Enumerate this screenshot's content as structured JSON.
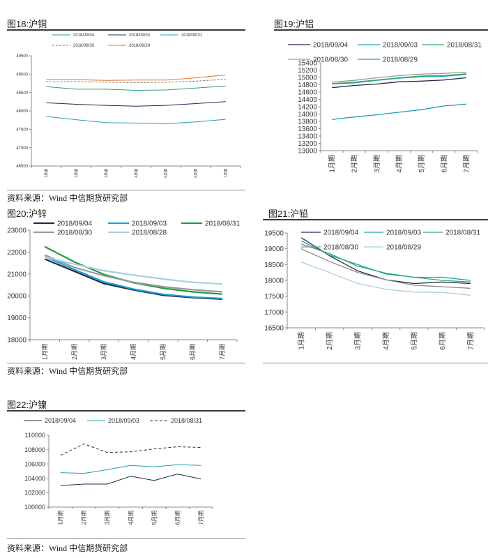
{
  "source_note": "资料来源：Wind 中信期货研究部",
  "chart_data": [
    {
      "id": "copper",
      "type": "line",
      "title": "图18:沪铜",
      "categories": [
        "1月期",
        "2月期",
        "3月期",
        "4月期",
        "5月期",
        "6月期",
        "7月期"
      ],
      "ylim": [
        46500,
        49500
      ],
      "yticks": [
        46500,
        47000,
        47500,
        48000,
        48500,
        49000,
        49500
      ],
      "grid": false,
      "legend_position": "top",
      "series": [
        {
          "name": "2018/09/04",
          "color": "#2f9e6e",
          "dash": "",
          "width": 1,
          "values": [
            48660,
            48590,
            48590,
            48560,
            48570,
            48620,
            48680
          ]
        },
        {
          "name": "2018/09/03",
          "color": "#1f2b4d",
          "dash": "",
          "width": 1,
          "values": [
            48220,
            48180,
            48150,
            48130,
            48150,
            48200,
            48250
          ]
        },
        {
          "name": "2018/08/31",
          "color": "#1ea0b4",
          "dash": "",
          "width": 1,
          "values": [
            47850,
            47760,
            47680,
            47670,
            47650,
            47700,
            47770
          ]
        },
        {
          "name": "2018/08/30",
          "color": "#777777",
          "dash": "3,2",
          "width": 1,
          "values": [
            48790,
            48800,
            48780,
            48770,
            48780,
            48810,
            48860
          ]
        },
        {
          "name": "2018/08/29",
          "color": "#e8752a",
          "dash": "",
          "width": 1,
          "values": [
            48860,
            48850,
            48830,
            48840,
            48840,
            48900,
            48980
          ]
        }
      ]
    },
    {
      "id": "aluminum",
      "type": "line",
      "title": "图19:沪铝",
      "categories": [
        "1月期",
        "2月期",
        "3月期",
        "4月期",
        "5月期",
        "6月期",
        "7月期"
      ],
      "ylim": [
        13000,
        15400
      ],
      "yticks": [
        13000,
        13200,
        13400,
        13600,
        13800,
        14000,
        14200,
        14400,
        14600,
        14800,
        15000,
        15200,
        15400
      ],
      "grid": false,
      "legend_position": "top",
      "series": [
        {
          "name": "2018/09/04",
          "color": "#1f2b4d",
          "dash": "",
          "width": 1.3,
          "values": [
            14720,
            14780,
            14820,
            14880,
            14900,
            14930,
            14990
          ]
        },
        {
          "name": "2018/09/03",
          "color": "#1ea0b4",
          "dash": "",
          "width": 1.3,
          "values": [
            14820,
            14850,
            14920,
            14980,
            15020,
            15030,
            15080
          ]
        },
        {
          "name": "2018/08/31",
          "color": "#2fae5e",
          "dash": "",
          "width": 1.3,
          "values": [
            14830,
            14870,
            14930,
            14990,
            15040,
            15050,
            15100
          ]
        },
        {
          "name": "2018/08/30",
          "color": "#999999",
          "dash": "",
          "width": 1.3,
          "values": [
            14870,
            14920,
            14990,
            15050,
            15090,
            15110,
            15140
          ]
        },
        {
          "name": "2018/08/29",
          "color": "#1ea0b4",
          "dash": "",
          "width": 1.3,
          "values": [
            13850,
            13920,
            13980,
            14050,
            14120,
            14220,
            14270
          ]
        }
      ]
    },
    {
      "id": "zinc",
      "type": "line",
      "title": "图20:沪锌",
      "categories": [
        "1月期",
        "2月期",
        "3月期",
        "4月期",
        "5月期",
        "6月期",
        "7月期"
      ],
      "ylim": [
        18000,
        23000
      ],
      "yticks": [
        18000,
        19000,
        20000,
        21000,
        22000,
        23000
      ],
      "grid": false,
      "legend_position": "top",
      "series": [
        {
          "name": "2018/09/04",
          "color": "#1f2b4d",
          "dash": "",
          "width": 2.2,
          "values": [
            21680,
            21120,
            20560,
            20270,
            20030,
            19920,
            19850
          ]
        },
        {
          "name": "2018/09/03",
          "color": "#1aa0d8",
          "dash": "",
          "width": 2.2,
          "values": [
            21800,
            21200,
            20640,
            20310,
            20070,
            19950,
            19880
          ]
        },
        {
          "name": "2018/08/31",
          "color": "#1e9e46",
          "dash": "",
          "width": 2.2,
          "values": [
            22250,
            21550,
            20980,
            20600,
            20350,
            20180,
            20080
          ]
        },
        {
          "name": "2018/08/30",
          "color": "#9a9a9a",
          "dash": "",
          "width": 2.2,
          "values": [
            21870,
            21300,
            20920,
            20620,
            20420,
            20280,
            20180
          ]
        },
        {
          "name": "2018/08/28",
          "color": "#a8cfe0",
          "dash": "",
          "width": 2.2,
          "values": [
            21780,
            21450,
            21150,
            20950,
            20770,
            20620,
            20540
          ]
        }
      ]
    },
    {
      "id": "lead",
      "type": "line",
      "title": "图21:沪铅",
      "categories": [
        "1月期",
        "2月期",
        "3月期",
        "4月期",
        "5月期",
        "6月期",
        "7月期"
      ],
      "ylim": [
        16500,
        19500
      ],
      "yticks": [
        16500,
        17000,
        17500,
        18000,
        18500,
        19000,
        19500
      ],
      "grid": false,
      "legend_position": "top",
      "series": [
        {
          "name": "2018/09/04",
          "color": "#1f2b4d",
          "dash": "",
          "width": 1.3,
          "values": [
            19350,
            18780,
            18300,
            18020,
            17900,
            17950,
            17900
          ]
        },
        {
          "name": "2018/09/03",
          "color": "#1ea0b4",
          "dash": "",
          "width": 1.3,
          "values": [
            19250,
            18800,
            18500,
            18200,
            18100,
            18100,
            18000
          ]
        },
        {
          "name": "2018/08/31",
          "color": "#2fae5e",
          "dash": "",
          "width": 1.3,
          "values": [
            19150,
            18850,
            18450,
            18230,
            18100,
            18000,
            17950
          ]
        },
        {
          "name": "2018/08/30",
          "color": "#8a8a8a",
          "dash": "",
          "width": 1.3,
          "values": [
            19000,
            18600,
            18250,
            18020,
            17850,
            17800,
            17750
          ]
        },
        {
          "name": "2018/08/29",
          "color": "#a8cfe0",
          "dash": "",
          "width": 1.3,
          "values": [
            18580,
            18250,
            17900,
            17720,
            17630,
            17620,
            17530
          ]
        }
      ]
    },
    {
      "id": "nickel",
      "type": "line",
      "title": "图22:沪镍",
      "categories": [
        "1月期",
        "2月期",
        "3月期",
        "4月期",
        "5月期",
        "6月期",
        "7月期"
      ],
      "ylim": [
        100000,
        110000
      ],
      "yticks": [
        100000,
        102000,
        104000,
        106000,
        108000,
        110000
      ],
      "grid": false,
      "legend_position": "top",
      "series": [
        {
          "name": "2018/09/04",
          "color": "#1f2b4d",
          "dash": "",
          "width": 1,
          "values": [
            103000,
            103200,
            103200,
            104300,
            103700,
            104600,
            103900
          ]
        },
        {
          "name": "2018/09/03",
          "color": "#1ea0b4",
          "dash": "",
          "width": 1,
          "values": [
            104800,
            104700,
            105200,
            105800,
            105600,
            105900,
            105800
          ]
        },
        {
          "name": "2018/08/31",
          "color": "#1f2b4d",
          "dash": "4,3",
          "width": 1,
          "values": [
            107200,
            108800,
            107600,
            107700,
            108100,
            108400,
            108300
          ]
        }
      ]
    }
  ]
}
